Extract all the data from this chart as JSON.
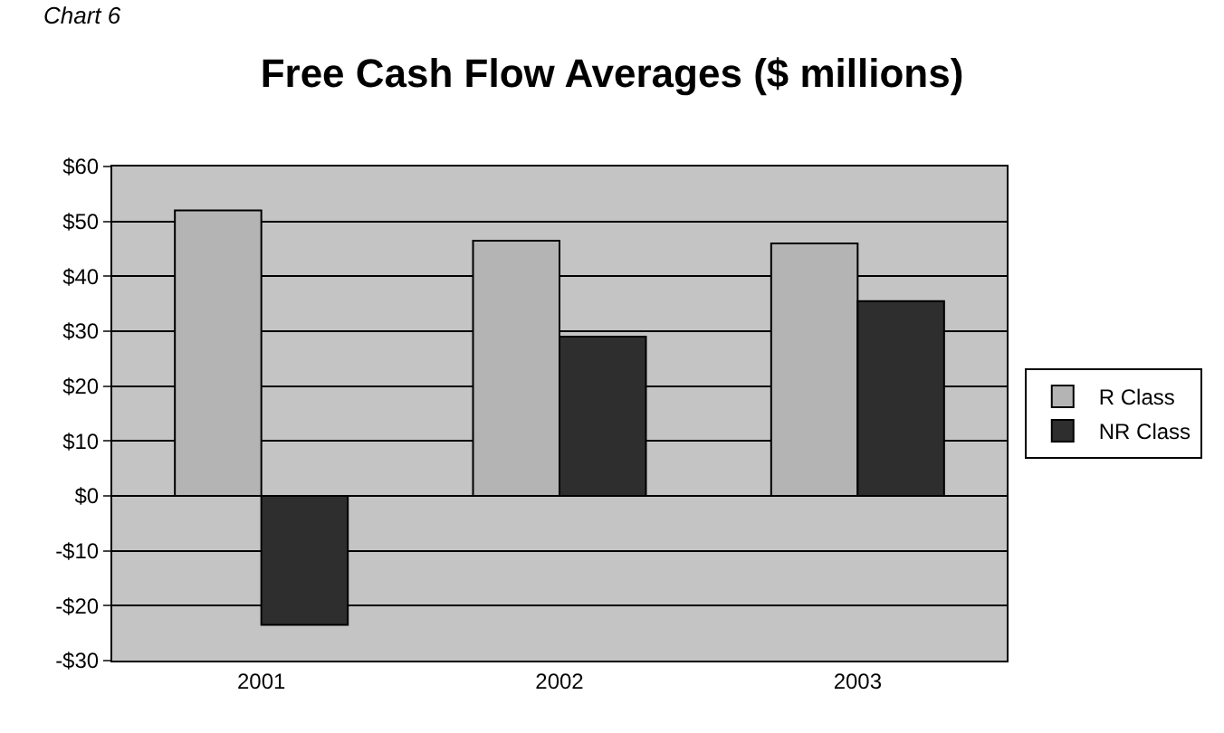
{
  "chart_data": {
    "type": "bar",
    "title": "Free Cash Flow Averages ($ millions)",
    "annotations": [
      "Chart 6"
    ],
    "categories": [
      "2001",
      "2002",
      "2003"
    ],
    "series": [
      {
        "name": "R Class",
        "color": "#b4b4b4",
        "values": [
          52,
          46.5,
          46
        ]
      },
      {
        "name": "NR Class",
        "color": "#2e2e2e",
        "values": [
          -23.5,
          29,
          35.5
        ]
      }
    ],
    "ylim": [
      -30,
      60
    ],
    "yticks": [
      {
        "value": -30,
        "label": "-$30"
      },
      {
        "value": -20,
        "label": "-$20"
      },
      {
        "value": -10,
        "label": "-$10"
      },
      {
        "value": 0,
        "label": "$0"
      },
      {
        "value": 10,
        "label": "$10"
      },
      {
        "value": 20,
        "label": "$20"
      },
      {
        "value": 30,
        "label": "$30"
      },
      {
        "value": 40,
        "label": "$40"
      },
      {
        "value": 50,
        "label": "$50"
      },
      {
        "value": 60,
        "label": "$60"
      }
    ],
    "grid": "y",
    "legend": "right"
  }
}
